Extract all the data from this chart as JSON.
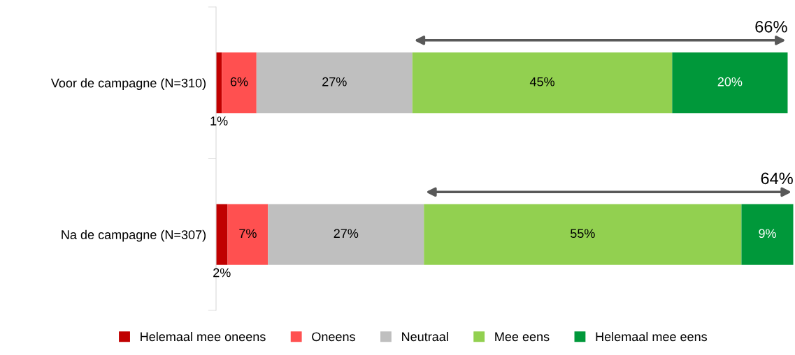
{
  "chart_data": {
    "type": "bar",
    "orientation": "horizontal",
    "stacked": true,
    "categories": [
      "Voor de campagne (N=310)",
      "Na de campagne (N=307)"
    ],
    "xlim": [
      0,
      100
    ],
    "tick_labels": "y",
    "grid": false,
    "legend": "bottom",
    "series": [
      {
        "name": "Helemaal mee oneens",
        "color": "#c00000",
        "values": [
          1,
          2
        ],
        "value_labels": [
          "1%",
          "2%"
        ]
      },
      {
        "name": "Oneens",
        "color": "#ff5050",
        "values": [
          6,
          7
        ],
        "value_labels": [
          "6%",
          "7%"
        ]
      },
      {
        "name": "Neutraal",
        "color": "#bfbfbf",
        "values": [
          27,
          27
        ],
        "value_labels": [
          "27%",
          "27%"
        ]
      },
      {
        "name": "Mee eens",
        "color": "#92d050",
        "values": [
          45,
          55
        ],
        "value_labels": [
          "45%",
          "55%"
        ]
      },
      {
        "name": "Helemaal mee eens",
        "color": "#00983a",
        "values": [
          20,
          9
        ],
        "value_labels": [
          "20%",
          "9%"
        ]
      }
    ],
    "annotations": [
      "66%",
      "64%"
    ]
  }
}
